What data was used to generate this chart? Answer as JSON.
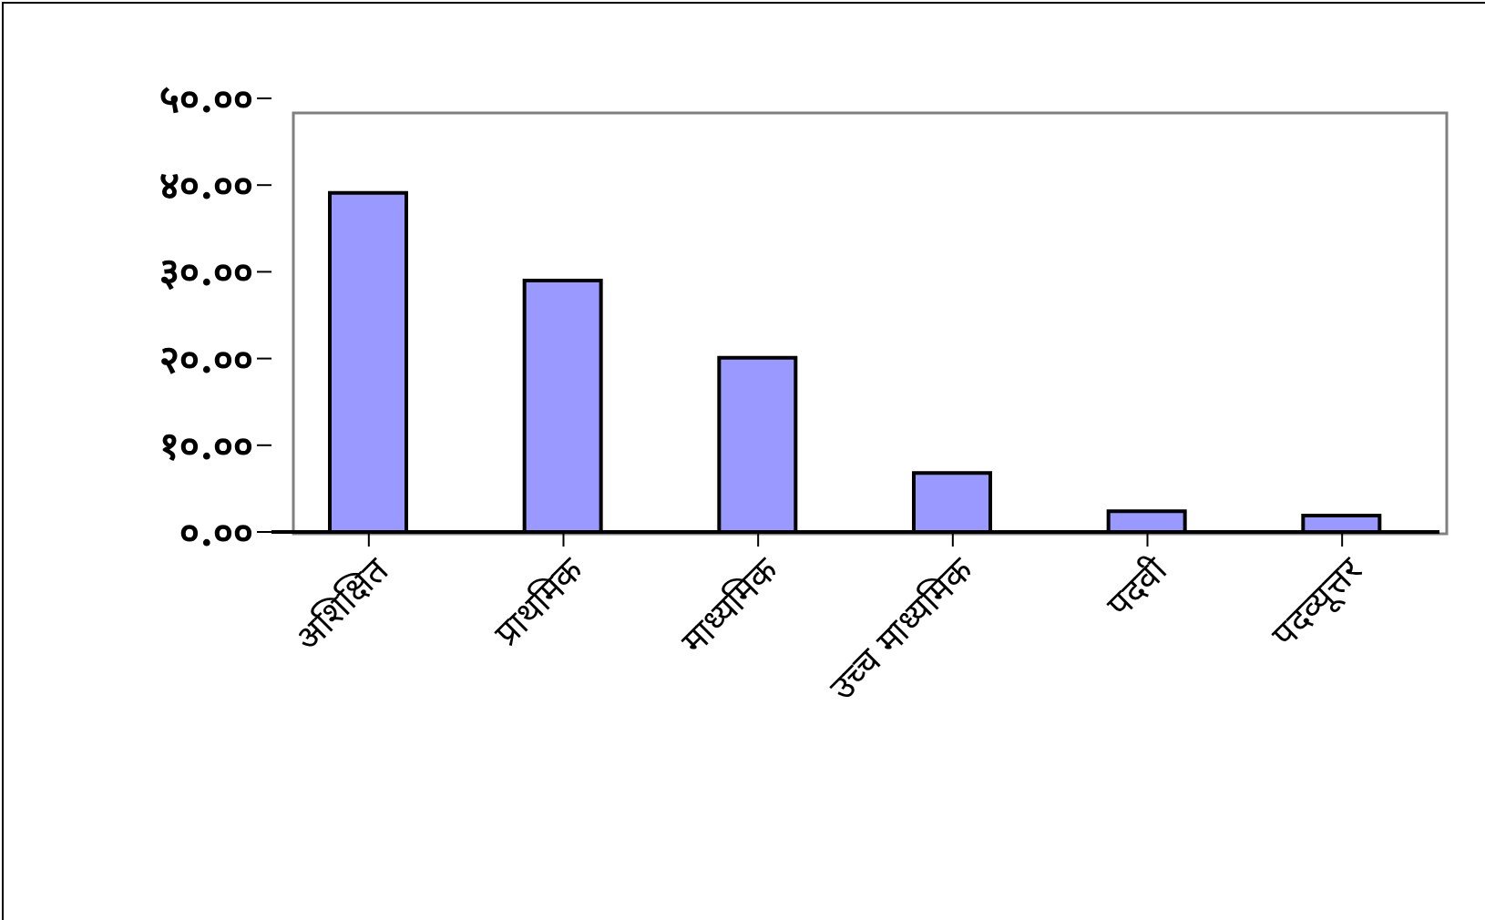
{
  "chart_data": {
    "type": "bar",
    "categories": [
      "अशिक्षित",
      "प्राथमिक",
      "माध्यमिक",
      "उच्च  माध्यमिक",
      "पदवी",
      "पदव्यूत्तर"
    ],
    "values": [
      39.1,
      29.0,
      20.1,
      6.8,
      2.4,
      1.9
    ],
    "color": "#9999ff",
    "ylim": [
      0,
      50
    ],
    "yticks": [
      {
        "value": 0,
        "label": "०.००"
      },
      {
        "value": 10,
        "label": "१०.००"
      },
      {
        "value": 20,
        "label": "२०.००"
      },
      {
        "value": 30,
        "label": "३०.००"
      },
      {
        "value": 40,
        "label": "४०.००"
      },
      {
        "value": 50,
        "label": "५०.००"
      }
    ],
    "grid": false,
    "legend": false
  }
}
